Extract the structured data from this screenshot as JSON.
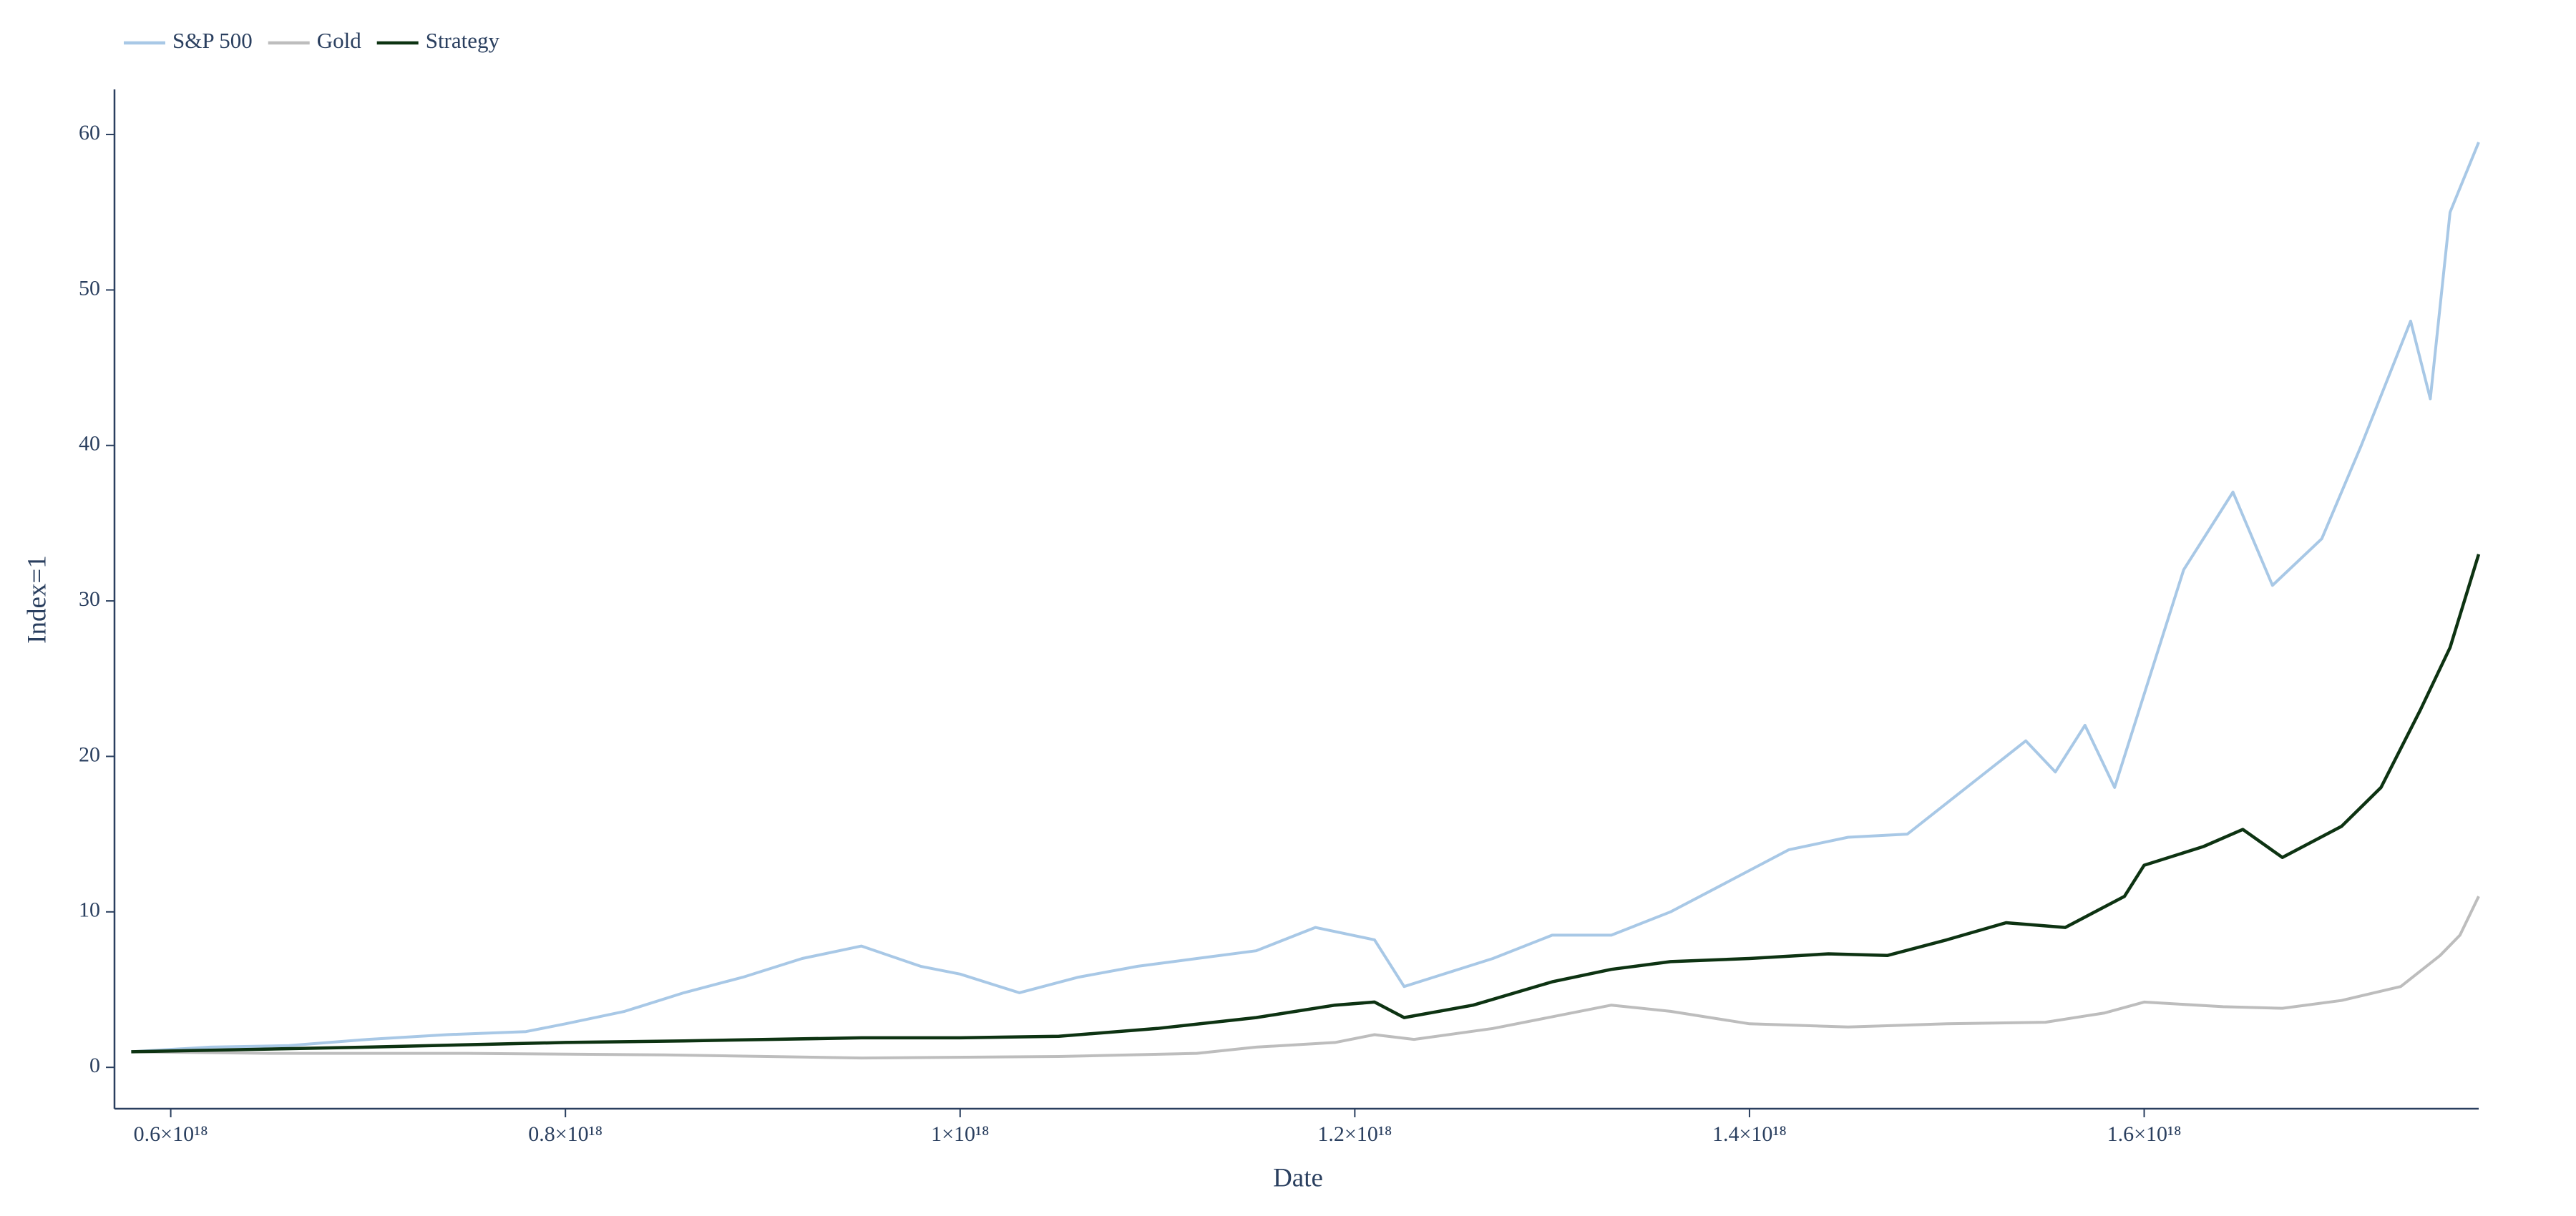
{
  "chart_data": {
    "type": "line",
    "xlabel": "Date",
    "ylabel": "Index=1",
    "xlim": [
      5.715e+17,
      1.7695e+18
    ],
    "ylim": [
      -2.66,
      62.9
    ],
    "xticks": [
      {
        "value": 6e+17,
        "label": "0.6×10¹⁸"
      },
      {
        "value": 8e+17,
        "label": "0.8×10¹⁸"
      },
      {
        "value": 1e+18,
        "label": "1×10¹⁸"
      },
      {
        "value": 1.2e+18,
        "label": "1.2×10¹⁸"
      },
      {
        "value": 1.4e+18,
        "label": "1.4×10¹⁸"
      },
      {
        "value": 1.6e+18,
        "label": "1.6×10¹⁸"
      }
    ],
    "yticks": [
      0,
      10,
      20,
      30,
      40,
      50,
      60
    ],
    "legend": "top-left",
    "series": [
      {
        "name": "S&P 500",
        "color": "#a8c8e6",
        "x": [
          5.8e+17,
          6.2e+17,
          6.6e+17,
          7e+17,
          7.4e+17,
          7.8e+17,
          8e+17,
          8.3e+17,
          8.6e+17,
          8.9e+17,
          9.2e+17,
          9.5e+17,
          9.8e+17,
          1e+18,
          1.03e+18,
          1.06e+18,
          1.09e+18,
          1.12e+18,
          1.15e+18,
          1.18e+18,
          1.21e+18,
          1.225e+18,
          1.24e+18,
          1.27e+18,
          1.3e+18,
          1.33e+18,
          1.36e+18,
          1.39e+18,
          1.42e+18,
          1.45e+18,
          1.48e+18,
          1.51e+18,
          1.54e+18,
          1.555e+18,
          1.57e+18,
          1.585e+18,
          1.6e+18,
          1.62e+18,
          1.645e+18,
          1.665e+18,
          1.69e+18,
          1.71e+18,
          1.735e+18,
          1.745e+18,
          1.755e+18,
          1.7695e+18
        ],
        "values": [
          1.0,
          1.3,
          1.4,
          1.8,
          2.1,
          2.3,
          2.8,
          3.6,
          4.8,
          5.8,
          7.0,
          7.8,
          6.5,
          6.0,
          4.8,
          5.8,
          6.5,
          7.0,
          7.5,
          9.0,
          8.2,
          5.2,
          5.8,
          7.0,
          8.5,
          8.5,
          10,
          12,
          14,
          14.8,
          15,
          18,
          21,
          19,
          22,
          18,
          24,
          32,
          37,
          31,
          34,
          40,
          48,
          43,
          55,
          59.5
        ]
      },
      {
        "name": "Gold",
        "color": "#bdbdbd",
        "x": [
          5.8e+17,
          6.5e+17,
          7.5e+17,
          8.5e+17,
          9.5e+17,
          1.05e+18,
          1.12e+18,
          1.15e+18,
          1.19e+18,
          1.21e+18,
          1.23e+18,
          1.27e+18,
          1.31e+18,
          1.33e+18,
          1.36e+18,
          1.4e+18,
          1.45e+18,
          1.5e+18,
          1.55e+18,
          1.58e+18,
          1.6e+18,
          1.64e+18,
          1.67e+18,
          1.7e+18,
          1.73e+18,
          1.75e+18,
          1.76e+18,
          1.7695e+18
        ],
        "values": [
          1.0,
          0.9,
          0.9,
          0.8,
          0.6,
          0.7,
          0.9,
          1.3,
          1.6,
          2.1,
          1.8,
          2.5,
          3.5,
          4.0,
          3.6,
          2.8,
          2.6,
          2.8,
          2.9,
          3.5,
          4.2,
          3.9,
          3.8,
          4.3,
          5.2,
          7.2,
          8.5,
          11
        ]
      },
      {
        "name": "Strategy",
        "color": "#0d3312",
        "x": [
          5.8e+17,
          6.2e+17,
          7e+17,
          8e+17,
          8.6e+17,
          9.5e+17,
          1e+18,
          1.05e+18,
          1.1e+18,
          1.15e+18,
          1.19e+18,
          1.21e+18,
          1.225e+18,
          1.26e+18,
          1.3e+18,
          1.33e+18,
          1.36e+18,
          1.4e+18,
          1.44e+18,
          1.47e+18,
          1.5e+18,
          1.53e+18,
          1.56e+18,
          1.59e+18,
          1.6e+18,
          1.63e+18,
          1.65e+18,
          1.67e+18,
          1.7e+18,
          1.72e+18,
          1.74e+18,
          1.755e+18,
          1.7695e+18
        ],
        "values": [
          1.0,
          1.1,
          1.3,
          1.6,
          1.7,
          1.9,
          1.9,
          2.0,
          2.5,
          3.2,
          4.0,
          4.2,
          3.2,
          4.0,
          5.5,
          6.3,
          6.8,
          7.0,
          7.3,
          7.2,
          8.2,
          9.3,
          9.0,
          11.0,
          13.0,
          14.2,
          15.3,
          13.5,
          15.5,
          18,
          23,
          27,
          33
        ]
      }
    ]
  }
}
